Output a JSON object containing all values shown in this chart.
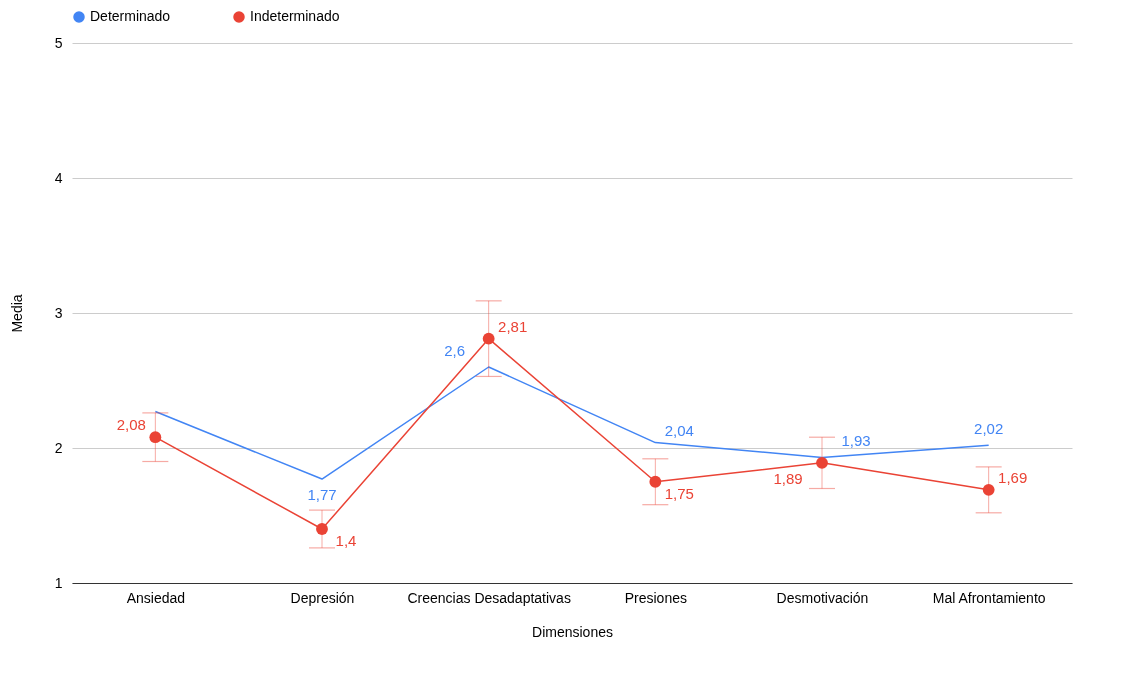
{
  "chart_data": {
    "type": "line",
    "xlabel": "Dimensiones",
    "ylabel": "Media",
    "categories": [
      "Ansiedad",
      "Depresión",
      "Creencias Desadaptativas",
      "Presiones",
      "Desmotivación",
      "Mal Afrontamiento"
    ],
    "series": [
      {
        "name": "Determinado",
        "color": "#4285f4",
        "marker": "none",
        "values": [
          2.27,
          1.77,
          2.6,
          2.04,
          1.93,
          2.02
        ],
        "value_labels": [
          null,
          "1,77",
          "2,6",
          "2,04",
          "1,93",
          "2,02"
        ]
      },
      {
        "name": "Indeterminado",
        "color": "#ea4335",
        "marker": "circle",
        "values": [
          2.08,
          1.4,
          2.81,
          1.75,
          1.89,
          1.69
        ],
        "value_labels": [
          "2,08",
          "1,4",
          "2,81",
          "1,75",
          "1,89",
          "1,69"
        ],
        "errors": [
          0.18,
          0.14,
          0.28,
          0.17,
          0.19,
          0.17
        ]
      }
    ],
    "ylim": [
      1,
      5
    ],
    "yticks": [
      1,
      2,
      3,
      4,
      5
    ],
    "grid": "y",
    "legend": "top",
    "line_style": "solid"
  }
}
